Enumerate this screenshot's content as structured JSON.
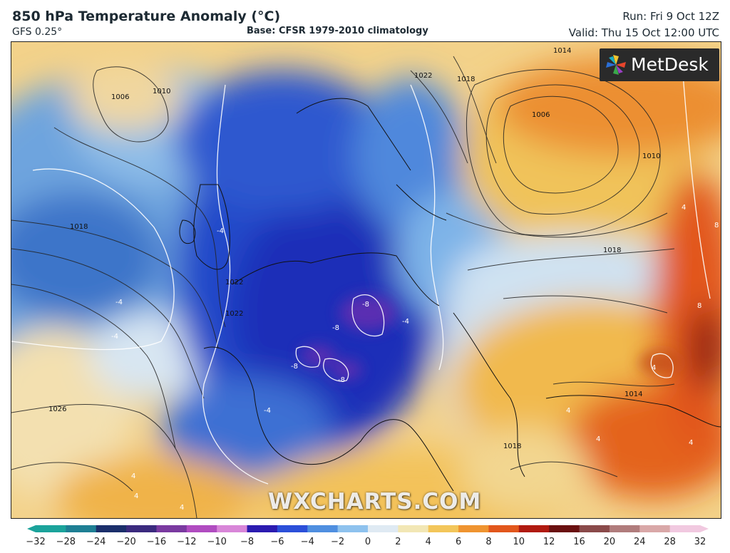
{
  "header": {
    "title": "850 hPa Temperature Anomaly (°C)",
    "model": "GFS 0.25°",
    "base": "Base: CFSR 1979-2010 climatology",
    "run": "Run: Fri 9 Oct 12Z",
    "valid": "Valid: Thu 15 Oct 12:00 UTC"
  },
  "logo": {
    "text": "MetDesk",
    "icon": "metdesk-pinwheel-icon"
  },
  "watermark": "WXCHARTS.COM",
  "map": {
    "isobar_labels": [
      "1006",
      "1010",
      "1018",
      "1026",
      "1022",
      "1022",
      "1018",
      "1014",
      "1006",
      "1010",
      "1018",
      "1014",
      "1018",
      "1022"
    ],
    "anomaly_labels": [
      "-4",
      "-4",
      "-8",
      "-8",
      "-8",
      "-8",
      "-4",
      "-4",
      "4",
      "4",
      "4",
      "4",
      "8",
      "8",
      "4",
      "4",
      "4",
      "4",
      "-4"
    ]
  },
  "colorbar": {
    "ticks": [
      "−32",
      "−28",
      "−24",
      "−20",
      "−16",
      "−12",
      "−10",
      "−8",
      "−6",
      "−4",
      "−2",
      "0",
      "2",
      "4",
      "6",
      "8",
      "10",
      "12",
      "16",
      "20",
      "24",
      "28",
      "32"
    ],
    "colors": [
      "#1ba39b",
      "#1e7f94",
      "#1b2f6b",
      "#3b2a7e",
      "#7a3aa0",
      "#b04cc0",
      "#d886d8",
      "#2b1bb0",
      "#2b4fd9",
      "#4f8fe0",
      "#8ec2ee",
      "#dfeaf3",
      "#f2e7b5",
      "#f3c65a",
      "#ef9430",
      "#e2571c",
      "#b01a10",
      "#6a1010",
      "#8a4a4a",
      "#b07c7c",
      "#d9a8a8",
      "#f1c9e0"
    ]
  }
}
